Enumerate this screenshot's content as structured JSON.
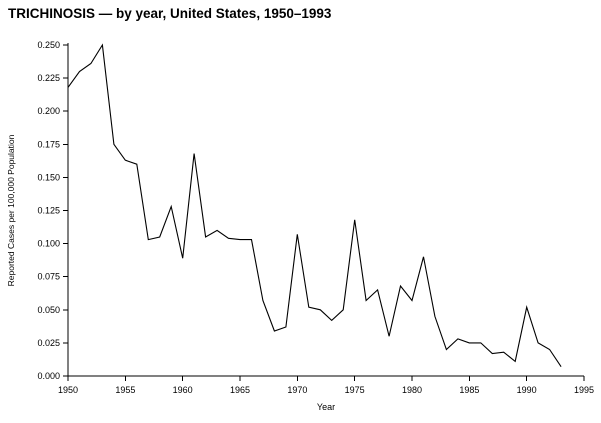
{
  "title": "TRICHINOSIS — by year, United States, 1950–1993",
  "chart_data": {
    "type": "line",
    "title": "TRICHINOSIS — by year, United States, 1950–1993",
    "xlabel": "Year",
    "ylabel": "Reported Cases per 100,000 Population",
    "xlim": [
      1950,
      1995
    ],
    "ylim": [
      0.0,
      0.25
    ],
    "x_ticks": [
      1950,
      1955,
      1960,
      1965,
      1970,
      1975,
      1980,
      1985,
      1990,
      1995
    ],
    "y_ticks": [
      0.0,
      0.025,
      0.05,
      0.075,
      0.1,
      0.125,
      0.15,
      0.175,
      0.2,
      0.225,
      0.25
    ],
    "grid": false,
    "legend": "none",
    "line_color": "#000000",
    "x": [
      1950,
      1951,
      1952,
      1953,
      1954,
      1955,
      1956,
      1957,
      1958,
      1959,
      1960,
      1961,
      1962,
      1963,
      1964,
      1965,
      1966,
      1967,
      1968,
      1969,
      1970,
      1971,
      1972,
      1973,
      1974,
      1975,
      1976,
      1977,
      1978,
      1979,
      1980,
      1981,
      1982,
      1983,
      1984,
      1985,
      1986,
      1987,
      1988,
      1989,
      1990,
      1991,
      1992,
      1993
    ],
    "values": [
      0.218,
      0.23,
      0.236,
      0.25,
      0.175,
      0.163,
      0.16,
      0.103,
      0.105,
      0.128,
      0.089,
      0.168,
      0.105,
      0.11,
      0.104,
      0.103,
      0.103,
      0.057,
      0.034,
      0.037,
      0.107,
      0.052,
      0.05,
      0.042,
      0.05,
      0.118,
      0.057,
      0.065,
      0.03,
      0.068,
      0.057,
      0.09,
      0.045,
      0.02,
      0.028,
      0.025,
      0.025,
      0.017,
      0.018,
      0.011,
      0.052,
      0.025,
      0.02,
      0.007
    ]
  }
}
